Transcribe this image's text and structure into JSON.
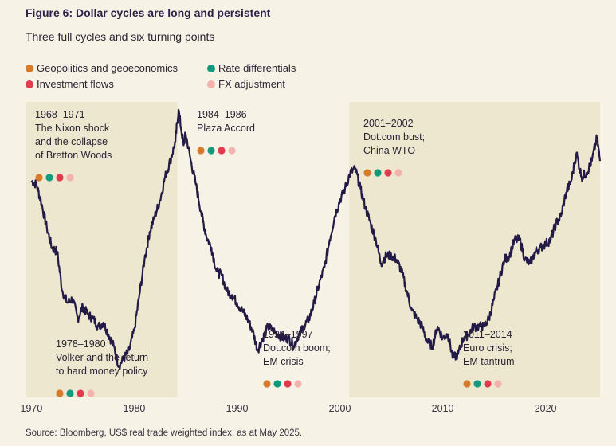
{
  "title": "Figure 6: Dollar cycles are long and persistent",
  "subtitle": "Three full cycles and six turning points",
  "source": "Source: Bloomberg, US$ real trade weighted index, as at May 2025.",
  "colors": {
    "geopolitics": "#d97a2b",
    "rate_differentials": "#129a7d",
    "investment_flows": "#e23b4f",
    "fx_adjustment": "#f3b2ae",
    "line": "#231b45",
    "shade": "#ede7d0",
    "background": "#f6f3e6"
  },
  "legend": [
    {
      "label": "Geopolitics and geoeconomics",
      "color_key": "geopolitics"
    },
    {
      "label": "Rate differentials",
      "color_key": "rate_differentials"
    },
    {
      "label": "Investment flows",
      "color_key": "investment_flows"
    },
    {
      "label": "FX adjustment",
      "color_key": "fx_adjustment"
    }
  ],
  "chart_data": {
    "type": "line",
    "title": "Figure 6: Dollar cycles are long and persistent",
    "subtitle": "Three full cycles and six turning points",
    "xlabel": "",
    "ylabel": "",
    "xlim": [
      1969.5,
      2025.3
    ],
    "ylim": [
      60,
      135
    ],
    "grid": false,
    "x_ticks": [
      1970,
      1980,
      1990,
      2000,
      2010,
      2020
    ],
    "shaded_ranges": [
      [
        1969.5,
        1984.2
      ],
      [
        2000.9,
        2025.3
      ]
    ],
    "series": [
      {
        "name": "US$ real trade weighted index",
        "x": [
          1970.0,
          1970.5,
          1971.0,
          1971.5,
          1972.0,
          1972.5,
          1973.0,
          1973.5,
          1974.0,
          1974.5,
          1975.0,
          1975.5,
          1976.0,
          1976.5,
          1977.0,
          1977.5,
          1978.0,
          1978.5,
          1979.0,
          1979.5,
          1980.0,
          1980.5,
          1981.0,
          1981.5,
          1982.0,
          1982.5,
          1983.0,
          1983.5,
          1984.0,
          1984.3,
          1984.8,
          1985.0,
          1985.5,
          1986.0,
          1986.5,
          1987.0,
          1987.5,
          1988.0,
          1988.5,
          1989.0,
          1989.5,
          1990.0,
          1990.5,
          1991.0,
          1991.5,
          1992.0,
          1992.5,
          1993.0,
          1993.5,
          1994.0,
          1994.5,
          1995.0,
          1995.5,
          1996.0,
          1996.5,
          1997.0,
          1997.5,
          1998.0,
          1998.5,
          1999.0,
          1999.5,
          2000.0,
          2000.5,
          2001.0,
          2001.5,
          2002.0,
          2002.5,
          2003.0,
          2003.5,
          2004.0,
          2004.5,
          2005.0,
          2005.5,
          2006.0,
          2006.5,
          2007.0,
          2007.5,
          2008.0,
          2008.5,
          2009.0,
          2009.5,
          2010.0,
          2010.5,
          2011.0,
          2011.5,
          2012.0,
          2012.5,
          2013.0,
          2013.5,
          2014.0,
          2014.5,
          2015.0,
          2015.5,
          2016.0,
          2016.5,
          2017.0,
          2017.5,
          2018.0,
          2018.5,
          2019.0,
          2019.5,
          2020.0,
          2020.5,
          2021.0,
          2021.5,
          2022.0,
          2022.5,
          2023.0,
          2023.5,
          2024.0,
          2024.5,
          2025.0,
          2025.3
        ],
        "values": [
          115,
          114,
          109,
          103,
          98,
          97,
          87,
          84,
          85,
          80,
          83,
          81,
          80,
          78,
          79,
          76,
          73,
          68,
          70,
          72,
          77,
          86,
          95,
          102,
          106,
          110,
          116,
          120,
          125,
          133,
          124,
          127,
          120,
          114,
          107,
          101,
          98,
          92,
          91,
          87,
          86,
          84,
          82,
          80,
          77,
          72,
          75,
          78,
          77,
          76,
          75,
          75,
          73,
          76,
          78,
          80,
          84,
          89,
          93,
          100,
          106,
          110,
          113,
          117,
          118,
          113,
          108,
          104,
          100,
          94,
          96,
          96,
          95,
          92,
          87,
          82,
          80,
          78,
          74,
          73,
          78,
          75,
          76,
          70,
          71,
          75,
          76,
          78,
          78,
          78,
          80,
          85,
          90,
          95,
          96,
          100,
          100,
          95,
          94,
          97,
          98,
          99,
          100,
          104,
          106,
          112,
          115,
          122,
          116,
          117,
          120,
          126,
          120
        ]
      }
    ],
    "annotations": [
      {
        "period": "1968–1971",
        "lines": [
          "The Nixon shock",
          "and the collapse",
          "of Bretton Woods"
        ]
      },
      {
        "period": "1984–1986",
        "lines": [
          "Plaza Accord"
        ]
      },
      {
        "period": "2001–2002",
        "lines": [
          "Dot.com bust;",
          "China WTO"
        ]
      },
      {
        "period": "1978–1980",
        "lines": [
          "Volker and the return",
          "to hard money policy"
        ]
      },
      {
        "period": "1994–1997",
        "lines": [
          "Dot.com boom;",
          "EM crisis"
        ]
      },
      {
        "period": "2011–2014",
        "lines": [
          "Euro crisis;",
          "EM tantrum"
        ]
      }
    ]
  }
}
